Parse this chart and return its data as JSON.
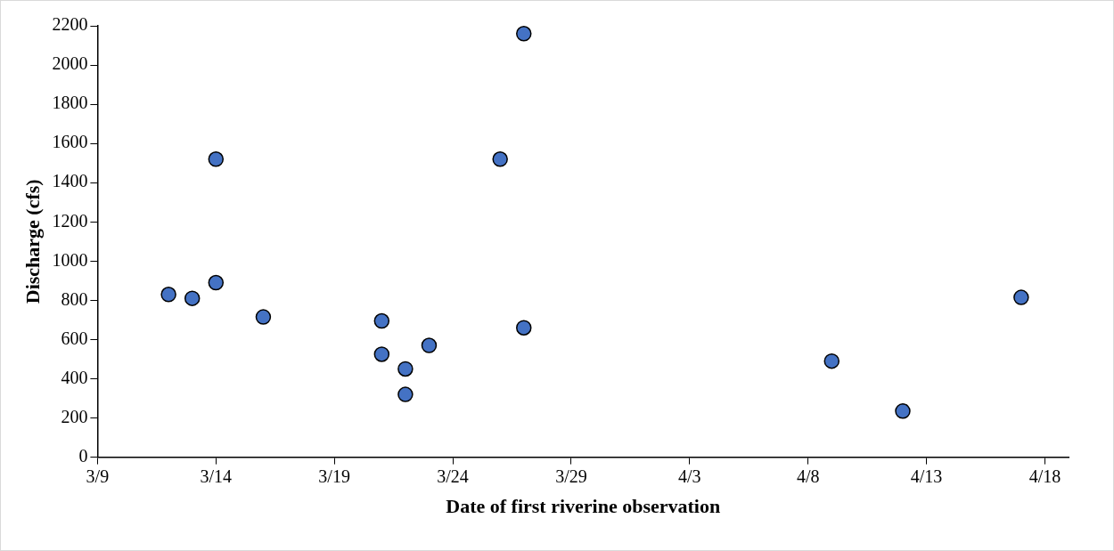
{
  "chart_data": {
    "type": "scatter",
    "xlabel": "Date of first riverine observation",
    "ylabel": "Discharge (cfs)",
    "x": [
      "--03-12",
      "--03-13",
      "--03-14",
      "--03-14",
      "--03-16",
      "--03-21",
      "--03-21",
      "--03-22",
      "--03-22",
      "--03-23",
      "--03-26",
      "--03-27",
      "--03-27",
      "--04-09",
      "--04-12",
      "--04-17"
    ],
    "series": [
      {
        "color": "#4472c4",
        "values": [
          830,
          810,
          1520,
          890,
          715,
          695,
          525,
          450,
          320,
          570,
          1520,
          2160,
          660,
          490,
          235,
          815
        ]
      }
    ],
    "xlim": [
      "--03-09",
      "--04-19"
    ],
    "xticks": [
      {
        "value": "--03-09",
        "label": "3/9"
      },
      {
        "value": "--03-14",
        "label": "3/14"
      },
      {
        "value": "--03-19",
        "label": "3/19"
      },
      {
        "value": "--03-24",
        "label": "3/24"
      },
      {
        "value": "--03-29",
        "label": "3/29"
      },
      {
        "value": "--04-03",
        "label": "4/3"
      },
      {
        "value": "--04-08",
        "label": "4/8"
      },
      {
        "value": "--04-13",
        "label": "4/13"
      },
      {
        "value": "--04-18",
        "label": "4/18"
      }
    ],
    "ylim": [
      0,
      2200
    ],
    "yticks": [
      0,
      200,
      400,
      600,
      800,
      1000,
      1200,
      1400,
      1600,
      1800,
      2000,
      2200
    ],
    "marker": "circle"
  }
}
